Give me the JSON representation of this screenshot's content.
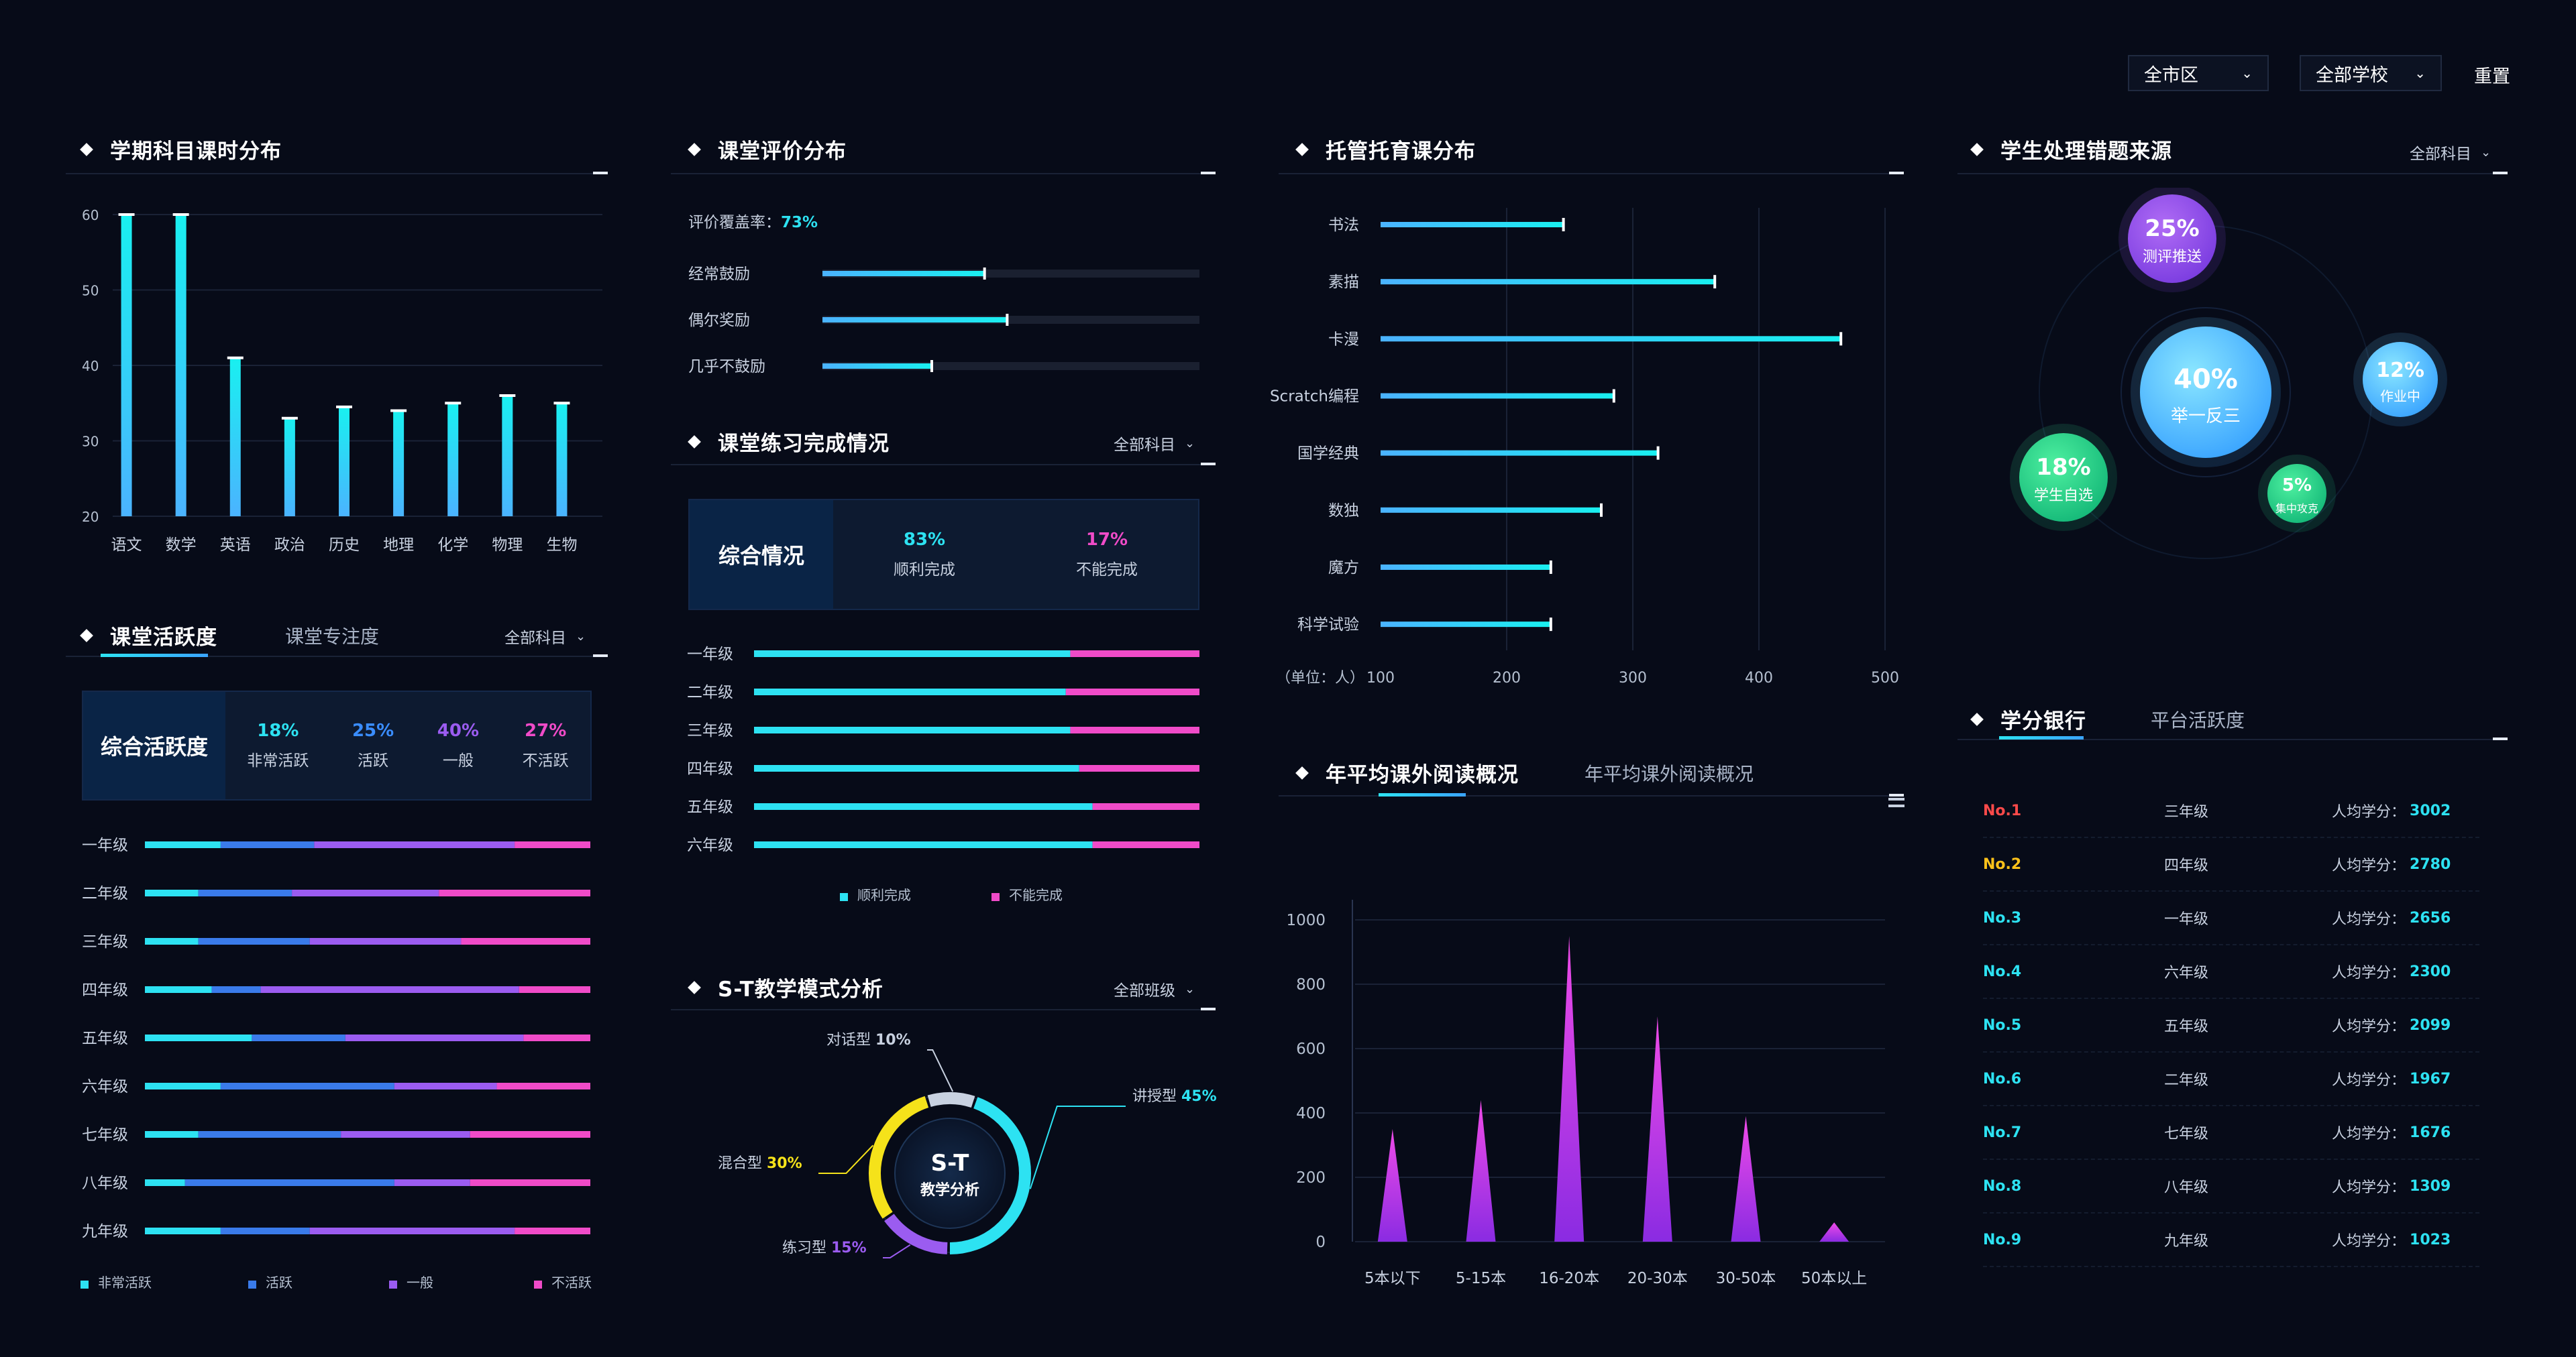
{
  "filters": {
    "district": "全市区",
    "school": "全部学校",
    "reset": "重置"
  },
  "subject_hours": {
    "title": "学期科目课时分布"
  },
  "class_activity": {
    "tab_active": "课堂活跃度",
    "tab_inactive": "课堂专注度",
    "dropdown": "全部科目",
    "summary_label": "综合活跃度",
    "stats": [
      {
        "pct": "18%",
        "label": "非常活跃",
        "color": "#2de2f2"
      },
      {
        "pct": "25%",
        "label": "活跃",
        "color": "#3a8dff"
      },
      {
        "pct": "40%",
        "label": "一般",
        "color": "#9b5cf0"
      },
      {
        "pct": "27%",
        "label": "不活跃",
        "color": "#f04bc8"
      }
    ]
  },
  "class_eval": {
    "title": "课堂评价分布",
    "coverage_label": "评价覆盖率：",
    "coverage_value": "73%"
  },
  "practice": {
    "title": "课堂练习完成情况",
    "dropdown": "全部科目",
    "summary_label": "综合情况",
    "stats": [
      {
        "pct": "83%",
        "label": "顺利完成",
        "color": "#2de2f2"
      },
      {
        "pct": "17%",
        "label": "不能完成",
        "color": "#f04bc8"
      }
    ]
  },
  "st_analysis": {
    "title": "S-T教学模式分析",
    "dropdown": "全部班级",
    "center_line1": "S-T",
    "center_line2": "教学分析"
  },
  "tutoring": {
    "title": "托管托育课分布",
    "unit_label": "（单位：人）"
  },
  "reading": {
    "tab_active": "年平均课外阅读概况",
    "tab_inactive": "年平均课外阅读概况"
  },
  "wrong_source": {
    "title": "学生处理错题来源",
    "dropdown": "全部科目",
    "bubbles": [
      {
        "pct": "40%",
        "label": "举一反三"
      },
      {
        "pct": "25%",
        "label": "测评推送"
      },
      {
        "pct": "12%",
        "label": "作业中"
      },
      {
        "pct": "18%",
        "label": "学生自选"
      },
      {
        "pct": "5%",
        "label": "集中攻克"
      }
    ]
  },
  "credit_bank": {
    "tab_active": "学分银行",
    "tab_inactive": "平台活跃度",
    "score_label": "人均学分：",
    "rows": [
      {
        "rank": "No.1",
        "grade": "三年级",
        "score": "3002",
        "color": "#ff4a4a"
      },
      {
        "rank": "No.2",
        "grade": "四年级",
        "score": "2780",
        "color": "#ffc21a"
      },
      {
        "rank": "No.3",
        "grade": "一年级",
        "score": "2656",
        "color": "#2de2f2"
      },
      {
        "rank": "No.4",
        "grade": "六年级",
        "score": "2300",
        "color": "#2de2f2"
      },
      {
        "rank": "No.5",
        "grade": "五年级",
        "score": "2099",
        "color": "#2de2f2"
      },
      {
        "rank": "No.6",
        "grade": "二年级",
        "score": "1967",
        "color": "#2de2f2"
      },
      {
        "rank": "No.7",
        "grade": "七年级",
        "score": "1676",
        "color": "#2de2f2"
      },
      {
        "rank": "No.8",
        "grade": "八年级",
        "score": "1309",
        "color": "#2de2f2"
      },
      {
        "rank": "No.9",
        "grade": "九年级",
        "score": "1023",
        "color": "#2de2f2"
      }
    ]
  },
  "chart_data": [
    {
      "id": "subject_hours",
      "type": "bar",
      "title": "学期科目课时分布",
      "categories": [
        "语文",
        "数学",
        "英语",
        "政治",
        "历史",
        "地理",
        "化学",
        "物理",
        "生物"
      ],
      "values": [
        60,
        60,
        41,
        33,
        34.5,
        34,
        35,
        36,
        35
      ],
      "ylim": [
        20,
        60
      ],
      "yticks": [
        20,
        30,
        40,
        50,
        60
      ],
      "grid": true
    },
    {
      "id": "class_activity",
      "type": "bar",
      "stacked": true,
      "orientation": "horizontal",
      "categories": [
        "一年级",
        "二年级",
        "三年级",
        "四年级",
        "五年级",
        "六年级",
        "七年级",
        "八年级",
        "九年级"
      ],
      "series": [
        {
          "name": "非常活跃",
          "color": "#2de2f2",
          "values": [
            17,
            12,
            12,
            15,
            24,
            17,
            12,
            9,
            17
          ]
        },
        {
          "name": "活跃",
          "color": "#3a7bea",
          "values": [
            21,
            21,
            25,
            11,
            21,
            39,
            32,
            47,
            20
          ]
        },
        {
          "name": "一般",
          "color": "#9b5cf0",
          "values": [
            45,
            33,
            34,
            58,
            40,
            23,
            29,
            17,
            46
          ]
        },
        {
          "name": "不活跃",
          "color": "#f04bc8",
          "values": [
            17,
            34,
            29,
            16,
            15,
            21,
            27,
            27,
            17
          ]
        }
      ],
      "legend": "bottom"
    },
    {
      "id": "class_eval",
      "type": "bar",
      "orientation": "horizontal",
      "categories": [
        "经常鼓励",
        "偶尔奖励",
        "几乎不鼓励"
      ],
      "values": [
        43,
        49,
        29
      ],
      "xlim": [
        0,
        100
      ]
    },
    {
      "id": "practice",
      "type": "bar",
      "stacked": true,
      "orientation": "horizontal",
      "categories": [
        "一年级",
        "二年级",
        "三年级",
        "四年级",
        "五年级",
        "六年级"
      ],
      "series": [
        {
          "name": "顺利完成",
          "color": "#2de2f2",
          "values": [
            71,
            70,
            71,
            73,
            76,
            76
          ]
        },
        {
          "name": "不能完成",
          "color": "#f04bc8",
          "values": [
            29,
            30,
            29,
            27,
            24,
            24
          ]
        }
      ],
      "legend": "bottom"
    },
    {
      "id": "st_analysis",
      "type": "pie",
      "labels": [
        "讲授型",
        "练习型",
        "混合型",
        "对话型"
      ],
      "values": [
        45,
        15,
        30,
        10
      ],
      "colors": [
        "#2de2f2",
        "#9b5cf0",
        "#f5e21a",
        "#c8d1e0"
      ]
    },
    {
      "id": "tutoring",
      "type": "bar",
      "orientation": "horizontal",
      "title": "托管托育课分布",
      "categories": [
        "书法",
        "素描",
        "卡漫",
        "Scratch编程",
        "国学经典",
        "数独",
        "魔方",
        "科学试验"
      ],
      "values": [
        245,
        365,
        465,
        285,
        320,
        275,
        235,
        235
      ],
      "xlim": [
        100,
        500
      ],
      "xticks": [
        100,
        200,
        300,
        400,
        500
      ],
      "xlabel": "（单位：人）",
      "grid": true
    },
    {
      "id": "reading",
      "type": "area",
      "categories": [
        "5本以下",
        "5-15本",
        "16-20本",
        "20-30本",
        "30-50本",
        "50本以上"
      ],
      "values": [
        350,
        440,
        950,
        700,
        390,
        60
      ],
      "ylim": [
        0,
        1000
      ],
      "yticks": [
        0,
        200,
        400,
        600,
        800,
        1000
      ],
      "grid": true
    }
  ]
}
